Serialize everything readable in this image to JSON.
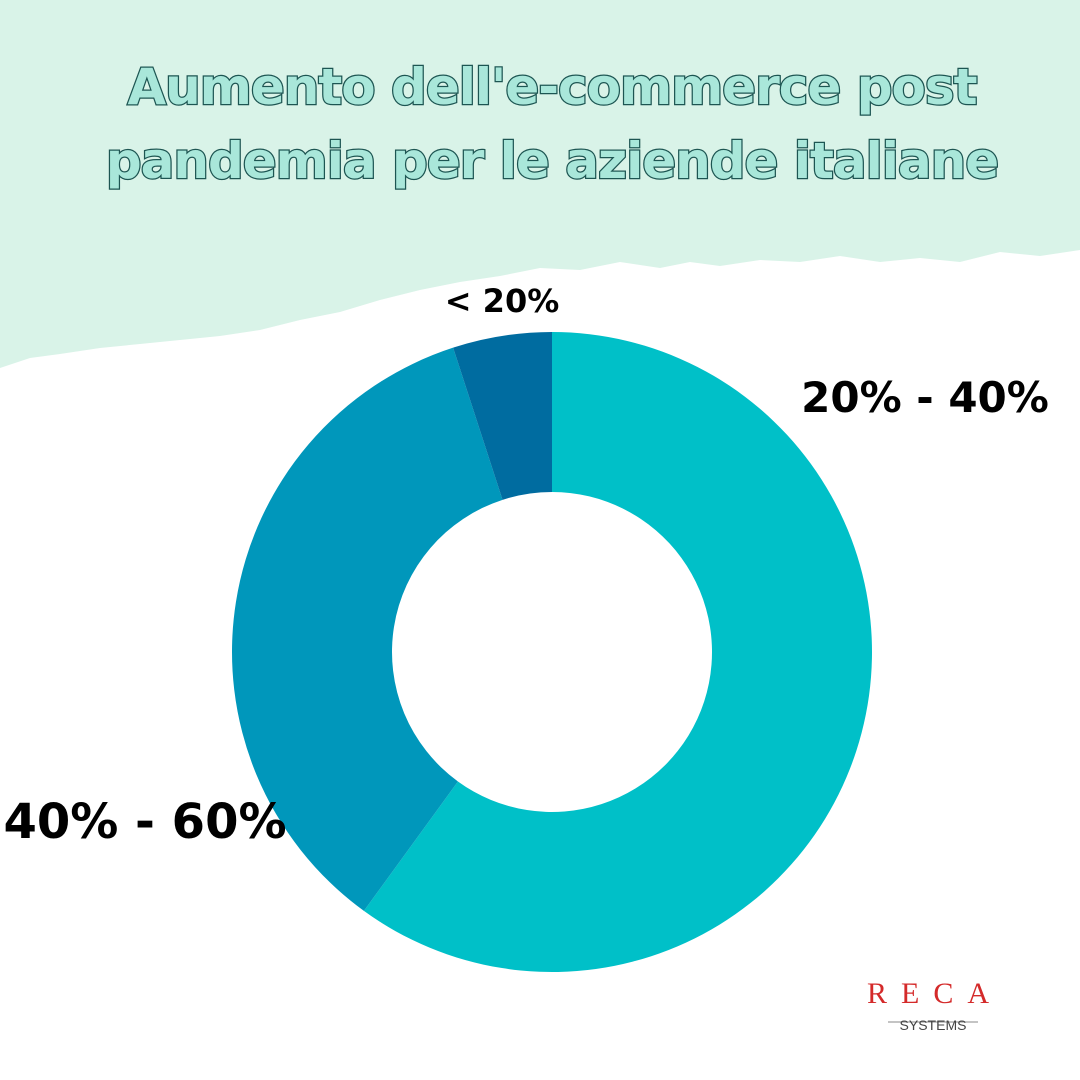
{
  "chart_data": {
    "type": "donut",
    "title": [
      "Aumento dell'e-commerce post",
      "pandemia per le aziende italiane"
    ],
    "categories": [
      "20% - 40%",
      "40% - 60%",
      "< 20%"
    ],
    "values": [
      60,
      35,
      5
    ],
    "colors": [
      "#00c0c8",
      "#0097bb",
      "#006ca0"
    ]
  },
  "logo": {
    "mark": "RECA",
    "sub": "SYSTEMS"
  }
}
